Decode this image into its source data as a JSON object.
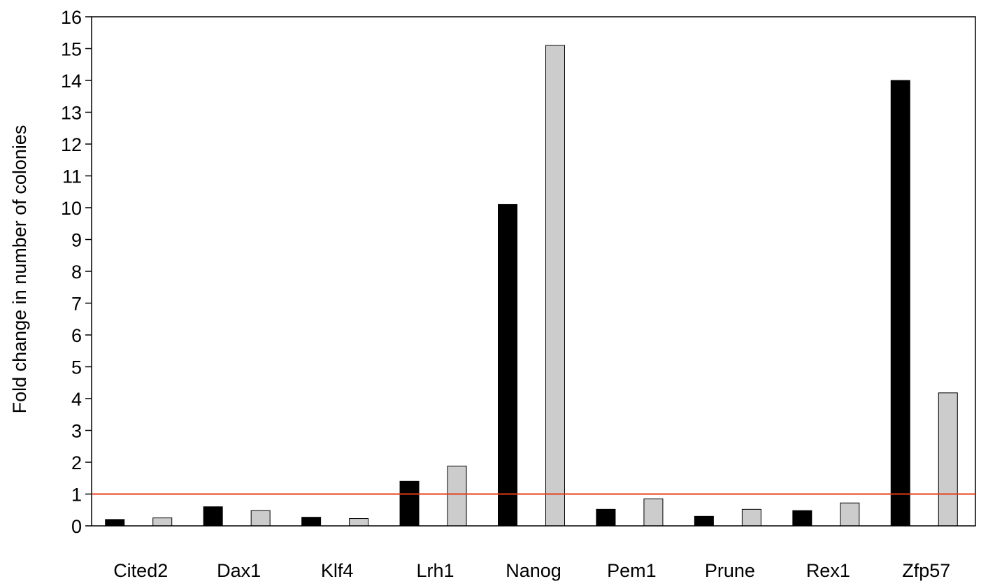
{
  "chart_data": {
    "type": "bar",
    "title": "",
    "xlabel": "",
    "ylabel": "Fold change in number of colonies",
    "ylim": [
      0,
      16
    ],
    "yticks": [
      0,
      1,
      2,
      3,
      4,
      5,
      6,
      7,
      8,
      9,
      10,
      11,
      12,
      13,
      14,
      15,
      16
    ],
    "categories": [
      "Cited2",
      "Dax1",
      "Klf4",
      "Lrh1",
      "Nanog",
      "Pem1",
      "Prune",
      "Rex1",
      "Zfp57"
    ],
    "series": [
      {
        "color": "#000000",
        "values": [
          0.2,
          0.6,
          0.27,
          1.4,
          10.1,
          0.52,
          0.3,
          0.48,
          14.0
        ]
      },
      {
        "color": "#cccccc",
        "values": [
          0.25,
          0.48,
          0.23,
          1.88,
          15.1,
          0.85,
          0.52,
          0.72,
          4.18
        ]
      }
    ],
    "reference_line": {
      "value": 1,
      "color": "#e8391a"
    },
    "grid": false,
    "legend": "none"
  }
}
